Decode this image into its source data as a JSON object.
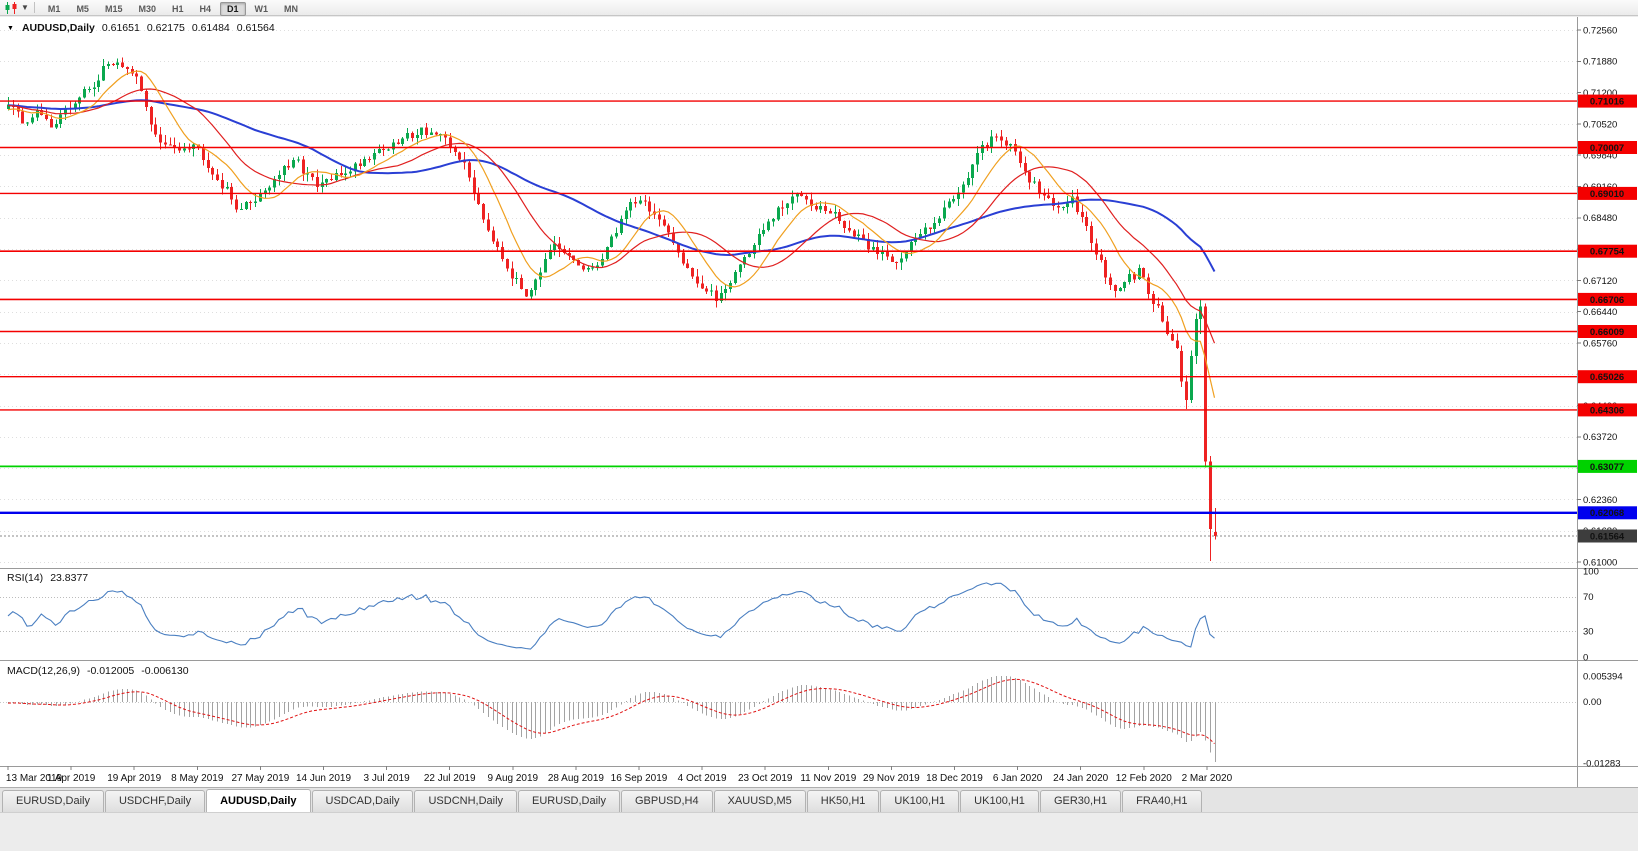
{
  "toolbar": {
    "chart_type_icon": "candlestick-chart-icon",
    "dropdown_icon": "chevron-down-icon",
    "timeframes": [
      "M1",
      "M5",
      "M15",
      "M30",
      "H1",
      "H4",
      "D1",
      "W1",
      "MN"
    ],
    "active_timeframe": "D1"
  },
  "chart_header": {
    "collapse_icon": "▼",
    "symbol": "AUDUSD,Daily",
    "open": "0.61651",
    "high": "0.62175",
    "low": "0.61484",
    "close": "0.61564"
  },
  "price_axis": {
    "labels": [
      "0.72560",
      "0.71880",
      "0.71200",
      "0.70520",
      "0.69840",
      "0.69160",
      "0.68480",
      "0.67800",
      "0.67120",
      "0.66440",
      "0.65760",
      "0.65080",
      "0.64400",
      "0.63720",
      "0.63040",
      "0.62360",
      "0.61680",
      "0.61000"
    ],
    "max": 0.7256,
    "min": 0.61
  },
  "time_axis": {
    "labels": [
      "13 Mar 2019",
      "1 Apr 2019",
      "19 Apr 2019",
      "8 May 2019",
      "27 May 2019",
      "14 Jun 2019",
      "3 Jul 2019",
      "22 Jul 2019",
      "9 Aug 2019",
      "28 Aug 2019",
      "16 Sep 2019",
      "4 Oct 2019",
      "23 Oct 2019",
      "11 Nov 2019",
      "29 Nov 2019",
      "18 Dec 2019",
      "6 Jan 2020",
      "24 Jan 2020",
      "12 Feb 2020",
      "2 Mar 2020"
    ]
  },
  "levels": [
    {
      "label": "0.71016",
      "price": 0.71016,
      "color": "#f40000",
      "width": 1.4
    },
    {
      "label": "0.70007",
      "price": 0.70007,
      "color": "#f40000",
      "width": 1.4
    },
    {
      "label": "0.69010",
      "price": 0.6901,
      "color": "#f40000",
      "width": 1.4
    },
    {
      "label": "0.67754",
      "price": 0.67754,
      "color": "#f40000",
      "width": 1.6
    },
    {
      "label": "0.66706",
      "price": 0.66706,
      "color": "#f40000",
      "width": 1.6
    },
    {
      "label": "0.66009",
      "price": 0.66009,
      "color": "#f40000",
      "width": 1.4
    },
    {
      "label": "0.65026",
      "price": 0.65026,
      "color": "#f40000",
      "width": 1.4
    },
    {
      "label": "0.64306",
      "price": 0.64306,
      "color": "#f40000",
      "width": 1.4
    },
    {
      "label": "0.63077",
      "price": 0.63077,
      "color": "#00d200",
      "width": 1.8
    },
    {
      "label": "0.62068",
      "price": 0.62068,
      "color": "#0000ee",
      "width": 2.4
    }
  ],
  "current_price": {
    "label": "0.61564",
    "price": 0.61564,
    "color": "#3d3d3d"
  },
  "indicators": {
    "rsi": {
      "name": "RSI(14)",
      "value": "23.8377",
      "axis_labels": [
        "100",
        "70",
        "30",
        "0"
      ],
      "upper_level": 70,
      "lower_level": 30,
      "line_color": "#4a7fc1"
    },
    "macd": {
      "name": "MACD(12,26,9)",
      "main_value": "-0.012005",
      "signal_value": "-0.006130",
      "axis_labels": [
        "0.005394",
        "0.00",
        "-0.01283"
      ],
      "range_max": 0.005394,
      "range_min": -0.01283,
      "histogram_color": "#a3a3a3",
      "signal_color": "#e01414"
    }
  },
  "tabs": {
    "items": [
      "EURUSD,Daily",
      "USDCHF,Daily",
      "AUDUSD,Daily",
      "USDCAD,Daily",
      "USDCNH,Daily",
      "EURUSD,Daily",
      "GBPUSD,H4",
      "XAUUSD,M5",
      "HK50,H1",
      "UK100,H1",
      "UK100,H1",
      "GER30,H1",
      "FRA40,H1"
    ],
    "active_index": 2
  },
  "chart_data": {
    "type": "candlestick",
    "symbol": "AUDUSD",
    "timeframe": "Daily",
    "date_range": [
      "13 Mar 2019",
      "2 Mar 2020"
    ],
    "last_candle": {
      "open": 0.61651,
      "high": 0.62175,
      "low": 0.61484,
      "close": 0.61564
    },
    "candle_count": 255,
    "colors": {
      "up": "#0aa84e",
      "down": "#ee2222",
      "ma_fast": "#f0a020",
      "ma_mid": "#e02020",
      "ma_slow": "#2a3fd4"
    },
    "moving_averages": [
      {
        "period": 10,
        "color_key": "ma_fast"
      },
      {
        "period": 21,
        "color_key": "ma_mid"
      },
      {
        "period": 45,
        "color_key": "ma_slow"
      }
    ],
    "anchors": [
      [
        0,
        0.7092
      ],
      [
        3,
        0.7058
      ],
      [
        6,
        0.7075
      ],
      [
        9,
        0.7052
      ],
      [
        12,
        0.7078
      ],
      [
        15,
        0.711
      ],
      [
        18,
        0.714
      ],
      [
        21,
        0.718
      ],
      [
        23,
        0.7192
      ],
      [
        25,
        0.7165
      ],
      [
        27,
        0.7148
      ],
      [
        29,
        0.709
      ],
      [
        31,
        0.7025
      ],
      [
        33,
        0.7
      ],
      [
        36,
        0.7005
      ],
      [
        39,
        0.701
      ],
      [
        41,
        0.6985
      ],
      [
        43,
        0.695
      ],
      [
        45,
        0.692
      ],
      [
        47,
        0.6888
      ],
      [
        49,
        0.6868
      ],
      [
        51,
        0.688
      ],
      [
        53,
        0.6902
      ],
      [
        55,
        0.692
      ],
      [
        57,
        0.6945
      ],
      [
        59,
        0.6958
      ],
      [
        61,
        0.6968
      ],
      [
        63,
        0.6942
      ],
      [
        65,
        0.6912
      ],
      [
        67,
        0.6928
      ],
      [
        69,
        0.6935
      ],
      [
        71,
        0.695
      ],
      [
        73,
        0.6962
      ],
      [
        75,
        0.6975
      ],
      [
        77,
        0.6992
      ],
      [
        79,
        0.7
      ],
      [
        81,
        0.7002
      ],
      [
        83,
        0.7018
      ],
      [
        85,
        0.7032
      ],
      [
        87,
        0.704
      ],
      [
        89,
        0.7035
      ],
      [
        91,
        0.702
      ],
      [
        93,
        0.7
      ],
      [
        95,
        0.6982
      ],
      [
        97,
        0.6935
      ],
      [
        99,
        0.688
      ],
      [
        101,
        0.6825
      ],
      [
        103,
        0.679
      ],
      [
        105,
        0.6745
      ],
      [
        107,
        0.6705
      ],
      [
        109,
        0.6685
      ],
      [
        111,
        0.672
      ],
      [
        113,
        0.6752
      ],
      [
        115,
        0.6782
      ],
      [
        117,
        0.6768
      ],
      [
        119,
        0.6755
      ],
      [
        121,
        0.6738
      ],
      [
        123,
        0.6728
      ],
      [
        125,
        0.6768
      ],
      [
        127,
        0.68
      ],
      [
        129,
        0.6845
      ],
      [
        131,
        0.6882
      ],
      [
        133,
        0.689
      ],
      [
        135,
        0.6868
      ],
      [
        137,
        0.6842
      ],
      [
        139,
        0.6805
      ],
      [
        141,
        0.6775
      ],
      [
        143,
        0.6742
      ],
      [
        145,
        0.671
      ],
      [
        147,
        0.6685
      ],
      [
        149,
        0.6672
      ],
      [
        151,
        0.67
      ],
      [
        153,
        0.673
      ],
      [
        155,
        0.6762
      ],
      [
        157,
        0.679
      ],
      [
        159,
        0.682
      ],
      [
        161,
        0.6848
      ],
      [
        163,
        0.687
      ],
      [
        165,
        0.6888
      ],
      [
        167,
        0.6905
      ],
      [
        169,
        0.6885
      ],
      [
        171,
        0.6868
      ],
      [
        173,
        0.6858
      ],
      [
        175,
        0.6845
      ],
      [
        177,
        0.682
      ],
      [
        179,
        0.68
      ],
      [
        181,
        0.6788
      ],
      [
        183,
        0.6775
      ],
      [
        185,
        0.6765
      ],
      [
        187,
        0.6758
      ],
      [
        189,
        0.6775
      ],
      [
        191,
        0.68
      ],
      [
        193,
        0.6825
      ],
      [
        195,
        0.6845
      ],
      [
        197,
        0.6865
      ],
      [
        199,
        0.6895
      ],
      [
        201,
        0.6925
      ],
      [
        203,
        0.6962
      ],
      [
        205,
        0.6995
      ],
      [
        207,
        0.7022
      ],
      [
        208,
        0.7032
      ],
      [
        210,
        0.701
      ],
      [
        212,
        0.6988
      ],
      [
        214,
        0.6952
      ],
      [
        216,
        0.692
      ],
      [
        218,
        0.6895
      ],
      [
        220,
        0.6868
      ],
      [
        222,
        0.688
      ],
      [
        224,
        0.689
      ],
      [
        226,
        0.6855
      ],
      [
        228,
        0.68
      ],
      [
        230,
        0.6745
      ],
      [
        232,
        0.67
      ],
      [
        234,
        0.6688
      ],
      [
        236,
        0.6715
      ],
      [
        238,
        0.673
      ],
      [
        240,
        0.6692
      ],
      [
        242,
        0.665
      ],
      [
        244,
        0.66
      ],
      [
        246,
        0.656
      ]
    ],
    "tail_candles": [
      {
        "o": 0.6558,
        "h": 0.657,
        "l": 0.648,
        "c": 0.6492
      },
      {
        "o": 0.6492,
        "h": 0.6505,
        "l": 0.6433,
        "c": 0.6452
      },
      {
        "o": 0.6452,
        "h": 0.656,
        "l": 0.6445,
        "c": 0.6548
      },
      {
        "o": 0.6548,
        "h": 0.664,
        "l": 0.653,
        "c": 0.6628
      },
      {
        "o": 0.6628,
        "h": 0.6672,
        "l": 0.6595,
        "c": 0.6655
      },
      {
        "o": 0.6655,
        "h": 0.6662,
        "l": 0.6305,
        "c": 0.6318
      },
      {
        "o": 0.6318,
        "h": 0.633,
        "l": 0.6102,
        "c": 0.6172
      },
      {
        "o": 0.61651,
        "h": 0.62175,
        "l": 0.61484,
        "c": 0.61564
      }
    ]
  }
}
